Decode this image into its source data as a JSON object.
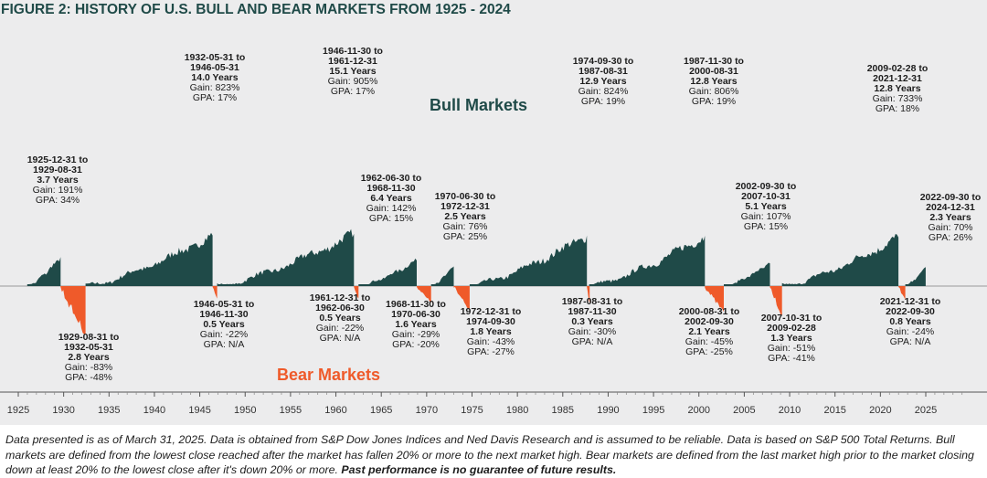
{
  "title": "FIGURE 2: HISTORY OF U.S. BULL AND BEAR MARKETS FROM 1925 - 2024",
  "bull_label": "Bull Markets",
  "bear_label": "Bear Markets",
  "footnote_text": "Data presented is as of March 31, 2025. Data is obtained from S&P Dow Jones Indices and Ned Davis Research and is assumed to be reliable. Data is based on S&P 500 Total Returns. Bull markets are defined from the lowest close reached after the market has fallen 20% or more to the next market high. Bear markets are defined from the last market high prior to the market closing down at least 20% to the lowest close after it's down 20% or more.",
  "footnote_bold": "Past performance is no guarantee of future results.",
  "colors": {
    "bull": "#1f4a48",
    "bear": "#ef5a2a",
    "background": "#ececed"
  },
  "chart_data": {
    "type": "area",
    "title": "FIGURE 2: HISTORY OF U.S. BULL AND BEAR MARKETS FROM 1925 - 2024",
    "x_ticks": [
      "1925",
      "1930",
      "1935",
      "1940",
      "1945",
      "1950",
      "1955",
      "1960",
      "1965",
      "1970",
      "1975",
      "1980",
      "1985",
      "1990",
      "1995",
      "2000",
      "2005",
      "2010",
      "2015",
      "2020",
      "2025"
    ],
    "xlim": [
      1924.5,
      2030
    ],
    "bull_markets": [
      {
        "period": "1925-12-31 to 1929-08-31",
        "start": 1925.99,
        "end": 1929.66,
        "years": "3.7 Years",
        "gain_text": "Gain: 191%",
        "gpa_text": "GPA: 34%",
        "gain": 191
      },
      {
        "period": "1932-05-31 to 1946-05-31",
        "start": 1932.41,
        "end": 1946.41,
        "years": "14.0 Years",
        "gain_text": "Gain: 823%",
        "gpa_text": "GPA: 17%",
        "gain": 823
      },
      {
        "period": "1946-11-30 to 1961-12-31",
        "start": 1946.91,
        "end": 1961.99,
        "years": "15.1 Years",
        "gain_text": "Gain: 905%",
        "gpa_text": "GPA: 17%",
        "gain": 905
      },
      {
        "period": "1962-06-30 to 1968-11-30",
        "start": 1962.49,
        "end": 1968.91,
        "years": "6.4 Years",
        "gain_text": "Gain: 142%",
        "gpa_text": "GPA: 15%",
        "gain": 142
      },
      {
        "period": "1970-06-30 to 1972-12-31",
        "start": 1970.49,
        "end": 1972.99,
        "years": "2.5 Years",
        "gain_text": "Gain: 76%",
        "gpa_text": "GPA: 25%",
        "gain": 76
      },
      {
        "period": "1974-09-30 to 1987-08-31",
        "start": 1974.74,
        "end": 1987.66,
        "years": "12.9 Years",
        "gain_text": "Gain: 824%",
        "gpa_text": "GPA: 19%",
        "gain": 824
      },
      {
        "period": "1987-11-30 to 2000-08-31",
        "start": 1987.91,
        "end": 2000.66,
        "years": "12.8 Years",
        "gain_text": "Gain: 806%",
        "gpa_text": "GPA: 19%",
        "gain": 806
      },
      {
        "period": "2002-09-30 to 2007-10-31",
        "start": 2002.74,
        "end": 2007.83,
        "years": "5.1 Years",
        "gain_text": "Gain: 107%",
        "gpa_text": "GPA: 15%",
        "gain": 107
      },
      {
        "period": "2009-02-28 to 2021-12-31",
        "start": 2009.16,
        "end": 2021.99,
        "years": "12.8 Years",
        "gain_text": "Gain: 733%",
        "gpa_text": "GPA: 18%",
        "gain": 733
      },
      {
        "period": "2022-09-30 to 2024-12-31",
        "start": 2022.74,
        "end": 2024.99,
        "years": "2.3 Years",
        "gain_text": "Gain: 70%",
        "gpa_text": "GPA: 26%",
        "gain": 70
      }
    ],
    "bear_markets": [
      {
        "period": "1929-08-31 to 1932-05-31",
        "start": 1929.66,
        "end": 1932.41,
        "years": "2.8 Years",
        "gain_text": "Gain: -83%",
        "gpa_text": "GPA: -48%",
        "gain": -83
      },
      {
        "period": "1946-05-31 to 1946-11-30",
        "start": 1946.41,
        "end": 1946.91,
        "years": "0.5 Years",
        "gain_text": "Gain: -22%",
        "gpa_text": "GPA: N/A",
        "gain": -22
      },
      {
        "period": "1961-12-31 to 1962-06-30",
        "start": 1961.99,
        "end": 1962.49,
        "years": "0.5 Years",
        "gain_text": "Gain: -22%",
        "gpa_text": "GPA: N/A",
        "gain": -22
      },
      {
        "period": "1968-11-30 to 1970-06-30",
        "start": 1968.91,
        "end": 1970.49,
        "years": "1.6 Years",
        "gain_text": "Gain: -29%",
        "gpa_text": "GPA: -20%",
        "gain": -29
      },
      {
        "period": "1972-12-31 to 1974-09-30",
        "start": 1972.99,
        "end": 1974.74,
        "years": "1.8 Years",
        "gain_text": "Gain: -43%",
        "gpa_text": "GPA: -27%",
        "gain": -43
      },
      {
        "period": "1987-08-31 to 1987-11-30",
        "start": 1987.66,
        "end": 1987.91,
        "years": "0.3 Years",
        "gain_text": "Gain: -30%",
        "gpa_text": "GPA: N/A",
        "gain": -30
      },
      {
        "period": "2000-08-31 to 2002-09-30",
        "start": 2000.66,
        "end": 2002.74,
        "years": "2.1 Years",
        "gain_text": "Gain: -45%",
        "gpa_text": "GPA: -25%",
        "gain": -45
      },
      {
        "period": "2007-10-31 to 2009-02-28",
        "start": 2007.83,
        "end": 2009.16,
        "years": "1.3 Years",
        "gain_text": "Gain: -51%",
        "gpa_text": "GPA: -41%",
        "gain": -51
      },
      {
        "period": "2021-12-31 to 2022-09-30",
        "start": 2021.99,
        "end": 2022.74,
        "years": "0.8 Years",
        "gain_text": "Gain: -24%",
        "gpa_text": "GPA: N/A",
        "gain": -24
      }
    ]
  }
}
